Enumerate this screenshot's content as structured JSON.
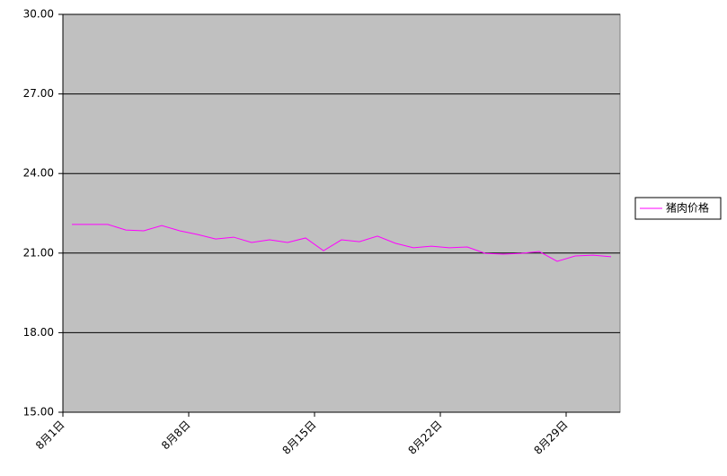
{
  "chart_data": {
    "type": "line",
    "categories": [
      "8月1日",
      null,
      null,
      null,
      null,
      null,
      null,
      "8月8日",
      null,
      null,
      null,
      null,
      null,
      null,
      "8月15日",
      null,
      null,
      null,
      null,
      null,
      null,
      "8月22日",
      null,
      null,
      null,
      null,
      null,
      null,
      "8月29日",
      null,
      null
    ],
    "series": [
      {
        "name": "猪肉价格",
        "color": "#ff00ff",
        "values": [
          22.08,
          22.08,
          22.08,
          21.87,
          21.84,
          22.04,
          21.84,
          21.7,
          21.53,
          21.6,
          21.4,
          21.5,
          21.4,
          21.57,
          21.09,
          21.5,
          21.43,
          21.64,
          21.37,
          21.2,
          21.26,
          21.2,
          21.23,
          20.99,
          20.96,
          20.99,
          21.06,
          20.69,
          20.89,
          20.92,
          20.86
        ]
      }
    ],
    "ylim": [
      15,
      30
    ],
    "yticks": [
      {
        "value": 15,
        "label": "15.00"
      },
      {
        "value": 18,
        "label": "18.00"
      },
      {
        "value": 21,
        "label": "21.00"
      },
      {
        "value": 24,
        "label": "24.00"
      },
      {
        "value": 27,
        "label": "27.00"
      },
      {
        "value": 30,
        "label": "30.00"
      }
    ],
    "grid": true,
    "legend": "right",
    "plot_background": "#c0c0c0"
  }
}
